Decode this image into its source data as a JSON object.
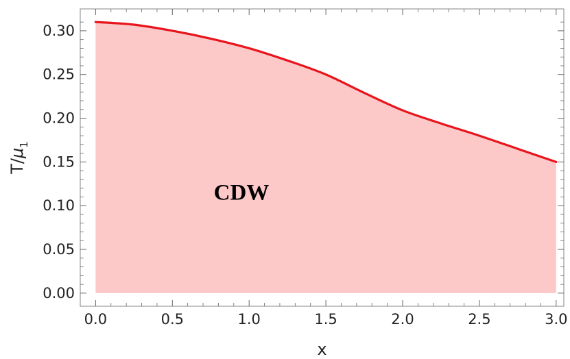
{
  "chart_data": {
    "type": "area",
    "title": "",
    "xlabel": "x",
    "ylabel": {
      "main": "T/",
      "greek": "μ",
      "sub": "1"
    },
    "xlim": [
      -0.1,
      3.05
    ],
    "ylim": [
      -0.015,
      0.325
    ],
    "xticks": [
      {
        "value": 0.0,
        "label": "0.0"
      },
      {
        "value": 0.5,
        "label": "0.5"
      },
      {
        "value": 1.0,
        "label": "1.0"
      },
      {
        "value": 1.5,
        "label": "1.5"
      },
      {
        "value": 2.0,
        "label": "2.0"
      },
      {
        "value": 2.5,
        "label": "2.5"
      },
      {
        "value": 3.0,
        "label": "3.0"
      }
    ],
    "yticks": [
      {
        "value": 0.0,
        "label": "0.00"
      },
      {
        "value": 0.05,
        "label": "0.05"
      },
      {
        "value": 0.1,
        "label": "0.10"
      },
      {
        "value": 0.15,
        "label": "0.15"
      },
      {
        "value": 0.2,
        "label": "0.20"
      },
      {
        "value": 0.25,
        "label": "0.25"
      },
      {
        "value": 0.3,
        "label": "0.30"
      }
    ],
    "series": [
      {
        "x": [
          0.0,
          0.25,
          0.5,
          0.75,
          1.0,
          1.25,
          1.5,
          1.75,
          2.0,
          2.25,
          2.5,
          2.75,
          3.0
        ],
        "y": [
          0.31,
          0.307,
          0.3,
          0.291,
          0.28,
          0.266,
          0.25,
          0.229,
          0.209,
          0.194,
          0.18,
          0.165,
          0.15
        ],
        "line_color": "#e8141c",
        "fill_color": "#fdc8c8"
      }
    ],
    "annotations": [
      {
        "text": "CDW",
        "x": 0.95,
        "y": 0.107
      }
    ],
    "grid": false,
    "legend": "none"
  }
}
